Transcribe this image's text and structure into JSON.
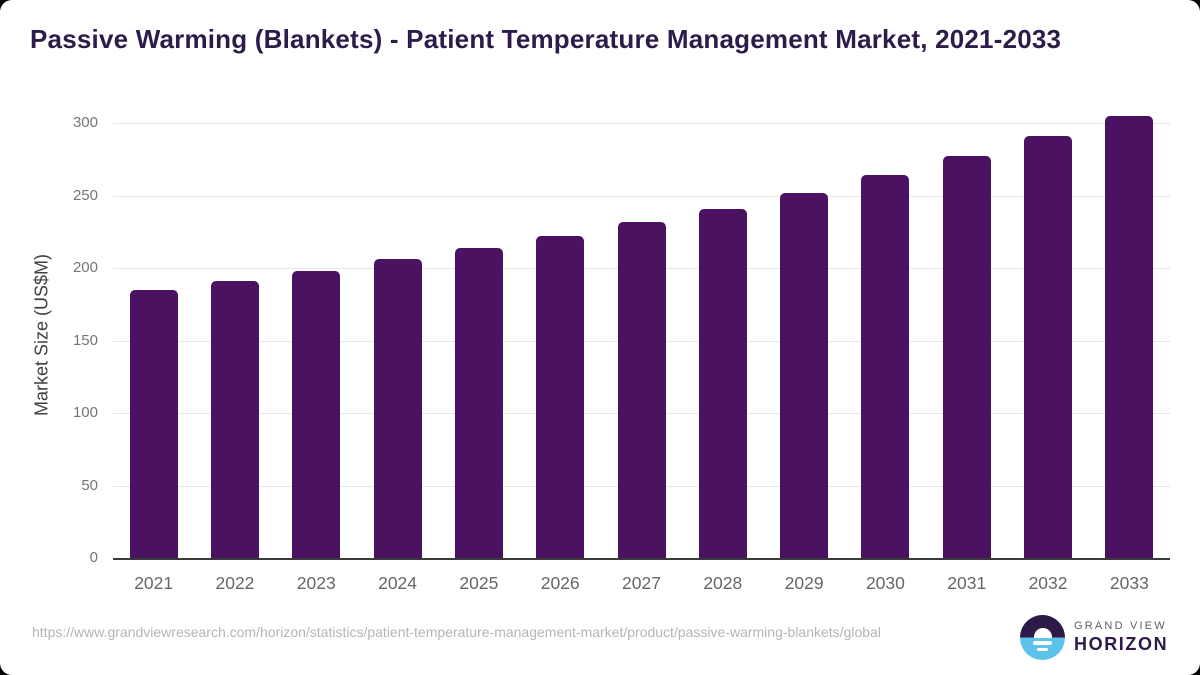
{
  "title": "Passive Warming (Blankets) - Patient Temperature Management Market, 2021-2033",
  "chart_data": {
    "type": "bar",
    "title": "Passive Warming (Blankets) - Patient Temperature Management Market, 2021-2033",
    "categories": [
      "2021",
      "2022",
      "2023",
      "2024",
      "2025",
      "2026",
      "2027",
      "2028",
      "2029",
      "2030",
      "2031",
      "2032",
      "2033"
    ],
    "values": [
      186,
      192,
      199,
      207,
      215,
      223,
      233,
      242,
      253,
      265,
      278,
      292,
      306
    ],
    "xlabel": "",
    "ylabel": "Market Size (US$M)",
    "ylim": [
      0,
      310
    ],
    "yticks": [
      0,
      50,
      100,
      150,
      200,
      250,
      300
    ],
    "grid": "horizontal",
    "legend": "none",
    "bar_color": "#4a1261"
  },
  "footer": {
    "source_url": "https://www.grandviewresearch.com/horizon/statistics/patient-temperature-management-market/product/passive-warming-blankets/global",
    "logo": {
      "brand_top": "GRAND VIEW",
      "brand_bottom": "HORIZON"
    }
  },
  "colors": {
    "bar": "#4a1261",
    "title": "#2d1b4a",
    "grid": "#e7e7e7",
    "axis_line": "#3a3a3a",
    "tick_label": "#757575",
    "xtick_label": "#666666",
    "axis_title": "#404040",
    "url_text": "#b5b5b5",
    "logo_purple": "#2e1a47",
    "logo_blue": "#5cc3ea"
  }
}
